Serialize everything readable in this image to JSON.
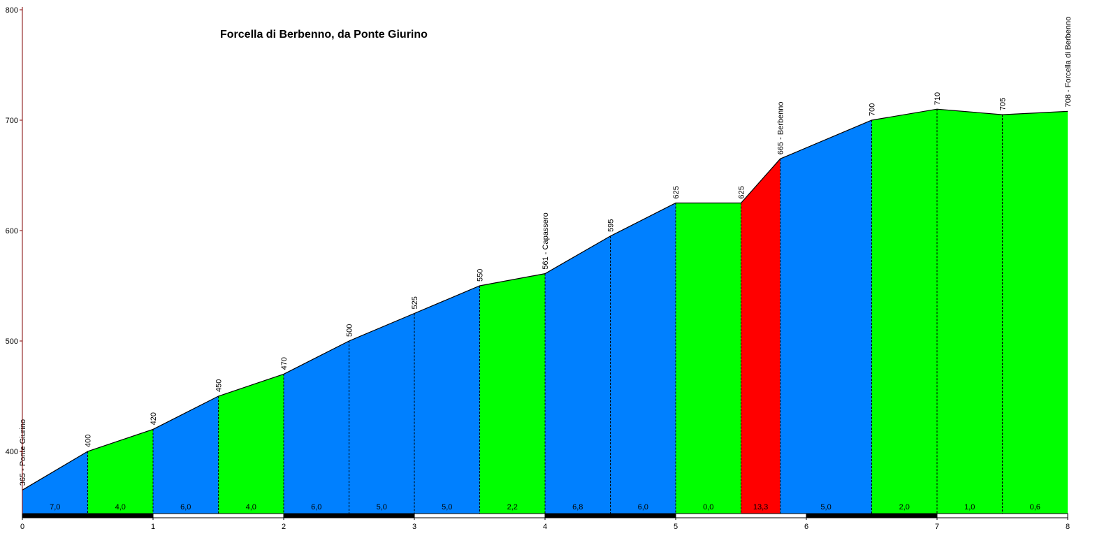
{
  "chart_data": {
    "type": "area",
    "title": "Forcella di Berbenno, da Ponte Giurino",
    "xlabel": "",
    "ylabel": "",
    "xlim": [
      0,
      8
    ],
    "ylim": [
      347,
      800
    ],
    "x_ticks": [
      "0",
      "1",
      "2",
      "3",
      "4",
      "5",
      "6",
      "7",
      "8"
    ],
    "y_ticks": [
      "400",
      "500",
      "600",
      "700",
      "800"
    ],
    "grid": false,
    "legend": "none",
    "colors": {
      "easy": "#00ff00",
      "medium": "#0080ff",
      "hard": "#ff0000",
      "line": "#000000",
      "axis": "#800000"
    },
    "points": [
      {
        "x": 0,
        "y": 365,
        "label": "365 - Ponte Giurino"
      },
      {
        "x": 0.5,
        "y": 400,
        "label": "400"
      },
      {
        "x": 1.0,
        "y": 420,
        "label": "420"
      },
      {
        "x": 1.5,
        "y": 450,
        "label": "450"
      },
      {
        "x": 2.0,
        "y": 470,
        "label": "470"
      },
      {
        "x": 2.5,
        "y": 500,
        "label": "500"
      },
      {
        "x": 3.0,
        "y": 525,
        "label": "525"
      },
      {
        "x": 3.5,
        "y": 550,
        "label": "550"
      },
      {
        "x": 4.0,
        "y": 561,
        "label": "561 - Capassero"
      },
      {
        "x": 4.5,
        "y": 595,
        "label": "595"
      },
      {
        "x": 5.0,
        "y": 625,
        "label": "625"
      },
      {
        "x": 5.5,
        "y": 625,
        "label": "625"
      },
      {
        "x": 5.8,
        "y": 665,
        "label": "665 - Berbenno"
      },
      {
        "x": 6.5,
        "y": 700,
        "label": "700"
      },
      {
        "x": 7.0,
        "y": 710,
        "label": "710"
      },
      {
        "x": 7.5,
        "y": 705,
        "label": "705"
      },
      {
        "x": 8.0,
        "y": 708,
        "label": "708 - Forcella di Berbenno"
      }
    ],
    "segments": [
      {
        "grade": "7,0",
        "color": "#0080ff"
      },
      {
        "grade": "4,0",
        "color": "#00ff00"
      },
      {
        "grade": "6,0",
        "color": "#0080ff"
      },
      {
        "grade": "4,0",
        "color": "#00ff00"
      },
      {
        "grade": "6,0",
        "color": "#0080ff"
      },
      {
        "grade": "5,0",
        "color": "#0080ff"
      },
      {
        "grade": "5,0",
        "color": "#0080ff"
      },
      {
        "grade": "2,2",
        "color": "#00ff00"
      },
      {
        "grade": "6,8",
        "color": "#0080ff"
      },
      {
        "grade": "6,0",
        "color": "#0080ff"
      },
      {
        "grade": "0,0",
        "color": "#00ff00"
      },
      {
        "grade": "13,3",
        "color": "#ff0000"
      },
      {
        "grade": "5,0",
        "color": "#0080ff"
      },
      {
        "grade": "2,0",
        "color": "#00ff00"
      },
      {
        "grade": "1,0",
        "color": "#00ff00"
      },
      {
        "grade": "0,6",
        "color": "#00ff00"
      }
    ],
    "km_bar": [
      {
        "from": 0,
        "to": 1,
        "fill": "black"
      },
      {
        "from": 1,
        "to": 2,
        "fill": "white"
      },
      {
        "from": 2,
        "to": 3,
        "fill": "black"
      },
      {
        "from": 3,
        "to": 4,
        "fill": "white"
      },
      {
        "from": 4,
        "to": 5,
        "fill": "black"
      },
      {
        "from": 5,
        "to": 6,
        "fill": "white"
      },
      {
        "from": 6,
        "to": 7,
        "fill": "black"
      },
      {
        "from": 7,
        "to": 8,
        "fill": "white"
      }
    ]
  }
}
